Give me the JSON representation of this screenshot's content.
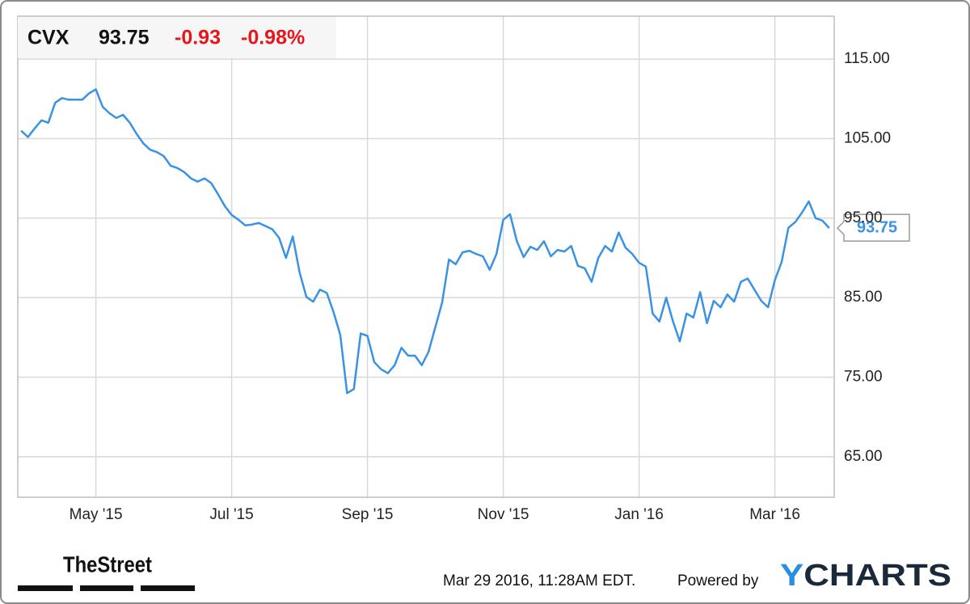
{
  "chart_data": {
    "type": "line",
    "ticker": "CVX",
    "price_change": "-0.93",
    "percent_change": "-0.98%",
    "color": "#3a92e4",
    "categories": [
      null,
      null,
      null,
      null,
      null,
      null,
      null,
      null,
      null,
      null,
      null,
      "May '15",
      null,
      null,
      null,
      null,
      null,
      null,
      null,
      null,
      null,
      null,
      null,
      null,
      null,
      null,
      null,
      null,
      null,
      null,
      null,
      "Jul '15",
      null,
      null,
      null,
      null,
      null,
      null,
      null,
      null,
      null,
      null,
      null,
      null,
      null,
      null,
      null,
      null,
      null,
      null,
      null,
      "Sep '15",
      null,
      null,
      null,
      null,
      null,
      null,
      null,
      null,
      null,
      null,
      null,
      null,
      null,
      null,
      null,
      null,
      null,
      null,
      null,
      "Nov '15",
      null,
      null,
      null,
      null,
      null,
      null,
      null,
      null,
      null,
      null,
      null,
      null,
      null,
      null,
      null,
      null,
      null,
      null,
      null,
      "Jan '16",
      null,
      null,
      null,
      null,
      null,
      null,
      null,
      null,
      null,
      null,
      null,
      null,
      null,
      null,
      null,
      null,
      null,
      null,
      null,
      "Mar '16",
      null,
      null,
      null,
      null,
      null,
      null,
      null,
      null
    ],
    "values": [
      106,
      105.2,
      106.3,
      107.3,
      107,
      109.5,
      110.1,
      109.9,
      109.9,
      109.9,
      110.7,
      111.2,
      109,
      108.2,
      107.6,
      108,
      107,
      105.6,
      104.4,
      103.6,
      103.3,
      102.8,
      101.6,
      101.3,
      100.8,
      100,
      99.6,
      100,
      99.4,
      98,
      96.5,
      95.4,
      94.8,
      94.1,
      94.2,
      94.4,
      94,
      93.6,
      92.5,
      90,
      92.7,
      88.2,
      85.1,
      84.5,
      86,
      85.6,
      83.2,
      80.3,
      73,
      73.5,
      80.5,
      80.2,
      76.9,
      76,
      75.5,
      76.5,
      78.7,
      77.7,
      77.7,
      76.5,
      78.2,
      81.3,
      84.4,
      89.8,
      89.2,
      90.7,
      90.9,
      90.5,
      90.2,
      88.5,
      90.5,
      94.8,
      95.5,
      92.1,
      90.1,
      91.4,
      91,
      92.1,
      90.2,
      91,
      90.8,
      91.5,
      89,
      88.7,
      87,
      90,
      91.5,
      90.8,
      93.2,
      91.3,
      90.5,
      89.4,
      88.9,
      83,
      82,
      85,
      82,
      79.5,
      83,
      82.5,
      85.7,
      81.8,
      84.6,
      83.8,
      85.4,
      84.5,
      87,
      87.4,
      86,
      84.6,
      83.8,
      87.2,
      89.5,
      93.8,
      94.5,
      95.7,
      97.1,
      95,
      94.7,
      93.75
    ],
    "ylim": [
      59.9,
      120.4
    ],
    "yticks": [
      {
        "value": 65,
        "label": "65.00"
      },
      {
        "value": 75,
        "label": "75.00"
      },
      {
        "value": 85,
        "label": "85.00"
      },
      {
        "value": 95,
        "label": "95.00"
      },
      {
        "value": 105,
        "label": "105.00"
      },
      {
        "value": 115,
        "label": "115.00"
      }
    ],
    "grid": true,
    "timestamp": "Mar 29 2016, 11:28AM EDT.",
    "powered_by": "Powered by",
    "brand": "YCHARTS",
    "source_logo": "TheStreet"
  }
}
